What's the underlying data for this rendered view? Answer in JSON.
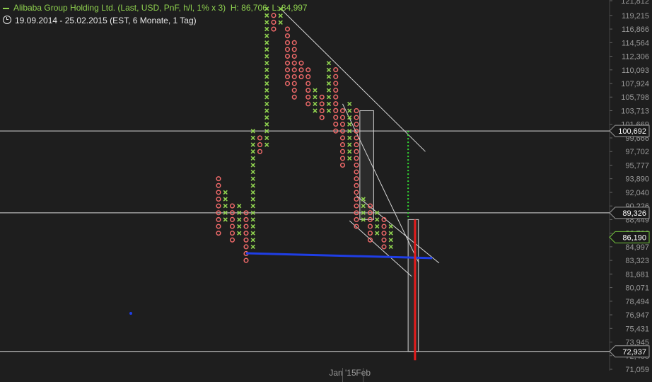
{
  "header": {
    "instrument": "Alibaba Group Holding Ltd. (Last, USD, PnF, h/l, 1% x 3)",
    "high": "H: 86,706",
    "low": "L: 84,997",
    "period": "19.09.2014 - 25.02.2015 (EST, 6 Monate, 1 Tag)"
  },
  "colors": {
    "background": "#1e1e1e",
    "rising_x": "#8fd14f",
    "falling_o": "#f06a6a",
    "support_line": "#1f3ee6",
    "target_line": "#e41c1c",
    "target_dotted": "#33dd33",
    "price_tag_border": "#74c43e"
  },
  "chart_data": {
    "type": "point-and-figure",
    "box_size_percent": 1,
    "reversal_boxes": 3,
    "currency": "USD",
    "y_axis": {
      "ticks": [
        121812,
        119215,
        116866,
        114564,
        112306,
        110093,
        107924,
        105798,
        103713,
        101669,
        99666,
        97702,
        95777,
        93890,
        92040,
        90226,
        88449,
        86706,
        84997,
        83323,
        81681,
        80071,
        78494,
        76947,
        75431,
        73945,
        72488,
        71059
      ],
      "tick_labels": [
        "121,812",
        "119,215",
        "116,866",
        "114,564",
        "112,306",
        "110,093",
        "107,924",
        "105,798",
        "103,713",
        "101,669",
        "99,666",
        "97,702",
        "95,777",
        "93,890",
        "92,040",
        "90,226",
        "88,449",
        "86,706",
        "84,997",
        "83,323",
        "81,681",
        "80,071",
        "78,494",
        "76,947",
        "75,431",
        "73,945",
        "72,488",
        "71,059"
      ],
      "range": [
        71059,
        121812
      ]
    },
    "x_axis": {
      "labels": [
        {
          "text": "Jan '15",
          "column": 18
        },
        {
          "text": "Feb",
          "column": 21
        }
      ]
    },
    "columns": [
      {
        "type": "O",
        "top": 93890,
        "bottom": 86706
      },
      {
        "type": "X",
        "bottom": 88449,
        "top": 92040
      },
      {
        "type": "O",
        "top": 90226,
        "bottom": 85851
      },
      {
        "type": "X",
        "bottom": 86706,
        "top": 90226
      },
      {
        "type": "O",
        "top": 89336,
        "bottom": 83323
      },
      {
        "type": "X",
        "bottom": 84997,
        "top": 100692
      },
      {
        "type": "O",
        "top": 99666,
        "bottom": 97702
      },
      {
        "type": "X",
        "bottom": 98676,
        "top": 120398
      },
      {
        "type": "O",
        "top": 119215,
        "bottom": 116866
      },
      {
        "type": "X",
        "bottom": 117989,
        "top": 120398
      },
      {
        "type": "O",
        "top": 116866,
        "bottom": 107924
      },
      {
        "type": "O",
        "top": 114564,
        "bottom": 105798
      },
      {
        "type": "O",
        "top": 111200,
        "bottom": 108999
      },
      {
        "type": "O",
        "top": 110093,
        "bottom": 104751
      },
      {
        "type": "X",
        "bottom": 103713,
        "top": 106855
      },
      {
        "type": "O",
        "top": 105798,
        "bottom": 102685
      },
      {
        "type": "X",
        "bottom": 103713,
        "top": 111200
      },
      {
        "type": "O",
        "top": 110093,
        "bottom": 100682
      },
      {
        "type": "O",
        "top": 103713,
        "bottom": 95777
      },
      {
        "type": "X",
        "bottom": 96734,
        "top": 104751
      },
      {
        "type": "O",
        "top": 103713,
        "bottom": 87574
      },
      {
        "type": "X",
        "bottom": 88449,
        "top": 91130
      },
      {
        "type": "O",
        "top": 90226,
        "bottom": 85851
      },
      {
        "type": "X",
        "bottom": 86706,
        "top": 89336
      },
      {
        "type": "O",
        "top": 88449,
        "bottom": 84997
      },
      {
        "type": "X",
        "bottom": 84997,
        "top": 87574
      }
    ],
    "horizontal_levels": [
      {
        "value": 100692,
        "label": "100,692"
      },
      {
        "value": 89326,
        "label": "89,326"
      },
      {
        "value": 72937,
        "label": "72,937"
      }
    ],
    "last_price": {
      "value": 86190,
      "label": "86,190"
    },
    "support_line": {
      "from": {
        "column": 4,
        "value": 84200
      },
      "to": {
        "column": 31,
        "value": 83600
      }
    },
    "resistance_lines": [
      {
        "from": {
          "column": 9,
          "value": 120398
        },
        "to": {
          "column": 30,
          "value": 97702
        }
      },
      {
        "from": {
          "column": 18,
          "value": 104751
        },
        "to": {
          "column": 29,
          "value": 83100
        }
      },
      {
        "from": {
          "column": 20,
          "value": 91600
        },
        "to": {
          "column": 32,
          "value": 83000
        }
      },
      {
        "from": {
          "column": 19,
          "value": 88300
        },
        "to": {
          "column": 28,
          "value": 81400
        }
      }
    ],
    "target_boxes": [
      {
        "col_left": 20.5,
        "col_right": 22.5,
        "top": 103713,
        "bottom": 88449
      },
      {
        "col_left": 27.5,
        "col_right": 29.0,
        "top": 88449,
        "bottom": 72937
      }
    ],
    "price_target": {
      "column": 28.5,
      "from": 88449,
      "to": 72000
    },
    "dotted_projection": {
      "column": 27.5,
      "from": 100692,
      "to": 88449
    }
  }
}
